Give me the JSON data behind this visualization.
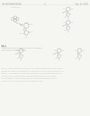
{
  "background_color": "#f5f5f2",
  "page_header_left": "US 2013/0261303 A1",
  "page_header_right": "Sep. 22, 2013",
  "page_number": "3",
  "text_color": "#888888",
  "line_color": "#aaaaaa",
  "struct_color": "#999999"
}
